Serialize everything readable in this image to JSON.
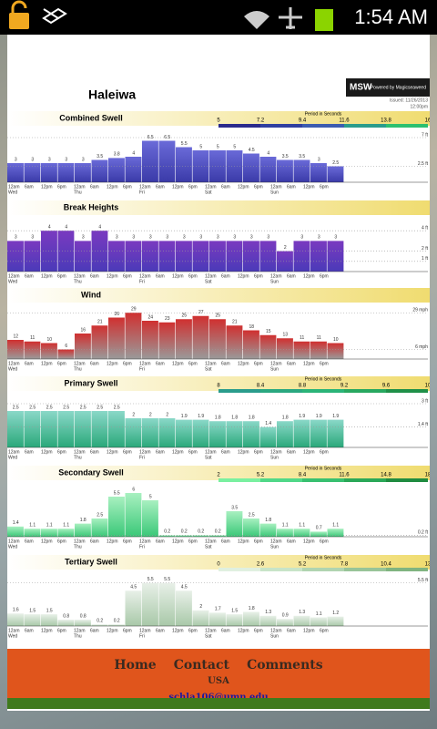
{
  "status_bar": {
    "time": "1:54 AM"
  },
  "header": {
    "spot": "Haleiwa",
    "logo": "MSW",
    "logo_tag": "Powered by Magicseaweed",
    "issued": "Issued: 11/26/2013",
    "issued_time": "12:00pm"
  },
  "time_axis": {
    "hours": [
      "12am",
      "6am",
      "12pm",
      "6pm"
    ],
    "days": [
      "Wed",
      "Thu",
      "Fri",
      "Sat",
      "Sun"
    ]
  },
  "chart_data": [
    {
      "type": "bar",
      "title": "Combined Swell",
      "color": "#3a3aa8",
      "color2": "#6a6ad8",
      "values": [
        3,
        3,
        3,
        3,
        3,
        3.5,
        3.8,
        4,
        6.5,
        6.5,
        5.5,
        5,
        5,
        5,
        4.5,
        4,
        3.5,
        3.5,
        3,
        2.5
      ],
      "ylim": [
        0,
        8
      ],
      "yticks": [
        {
          "value": 7,
          "label": "7 ft"
        },
        {
          "value": 2.5,
          "label": "2.5 ft"
        }
      ],
      "period": {
        "label": "Period in Seconds",
        "ticks": [
          5,
          7.2,
          9.4,
          11.6,
          13.8,
          16
        ],
        "colors": [
          "#2a2a8c",
          "#2f3fa0",
          "#3c5cb0",
          "#2a9c8c",
          "#2cc070"
        ]
      }
    },
    {
      "type": "bar",
      "title": "Break Heights",
      "color": "#4a3ab8",
      "color2": "#7a3ac0",
      "values": [
        3,
        3,
        4,
        4,
        3,
        4,
        3,
        3,
        3,
        3,
        3,
        3,
        3,
        3,
        3,
        3,
        2,
        3,
        3,
        3
      ],
      "ylim": [
        0,
        5
      ],
      "yticks": [
        {
          "value": 4,
          "label": "4 ft"
        },
        {
          "value": 2,
          "label": "2 ft"
        },
        {
          "value": 1,
          "label": "1 ft"
        }
      ]
    },
    {
      "type": "bar",
      "title": "Wind",
      "color": "#9a9a9a",
      "color2": "#d03030",
      "values": [
        12,
        11,
        10,
        6,
        16,
        21,
        26,
        29,
        24,
        23,
        25,
        27,
        25,
        21,
        18,
        15,
        13,
        11,
        11,
        10
      ],
      "ylim": [
        0,
        32
      ],
      "yticks": [
        {
          "value": 29,
          "label": "29 mph"
        },
        {
          "value": 6,
          "label": "6 mph"
        }
      ]
    },
    {
      "type": "bar",
      "title": "Primary Swell",
      "color": "#2aa87a",
      "color2": "#8ad8c8",
      "values": [
        2.5,
        2.5,
        2.5,
        2.5,
        2.5,
        2.5,
        2.5,
        2,
        2,
        2,
        1.9,
        1.9,
        1.8,
        1.8,
        1.8,
        1.4,
        1.8,
        1.9,
        1.9,
        1.9
      ],
      "ylim": [
        0,
        3.5
      ],
      "yticks": [
        {
          "value": 3,
          "label": "3 ft"
        },
        {
          "value": 1.4,
          "label": "1.4 ft"
        }
      ],
      "period": {
        "label": "Period in Seconds",
        "ticks": [
          8,
          8.4,
          8.8,
          9.2,
          9.6,
          10
        ],
        "colors": [
          "#2a9c8c",
          "#2aa880",
          "#2ab478",
          "#28a860",
          "#1f9048"
        ]
      }
    },
    {
      "type": "bar",
      "title": "Secondary Swell",
      "color": "#3ac878",
      "color2": "#a8f0c0",
      "values": [
        1.4,
        1.1,
        1.1,
        1.1,
        1.8,
        2.5,
        5.5,
        6,
        5,
        0.2,
        0.2,
        0.2,
        0.2,
        3.5,
        2.5,
        1.8,
        1.1,
        1.1,
        0.7,
        1.1
      ],
      "ylim": [
        0,
        7
      ],
      "yticks": [
        {
          "value": 0.2,
          "label": "0.2 ft"
        }
      ],
      "period": {
        "label": "Period in Seconds",
        "ticks": [
          2,
          5.2,
          8.4,
          11.6,
          14.8,
          18
        ],
        "colors": [
          "#7af0a0",
          "#50d888",
          "#38c070",
          "#2aa858",
          "#1f8c40"
        ]
      }
    },
    {
      "type": "bar",
      "title": "Tertiary Swell",
      "color": "#a8c8a8",
      "color2": "#e8f0e8",
      "values": [
        1.6,
        1.5,
        1.5,
        0.8,
        0.8,
        0.2,
        0.2,
        4.5,
        5.5,
        5.5,
        4.5,
        2,
        1.7,
        1.5,
        1.8,
        1.3,
        0.9,
        1.3,
        1.1,
        1.2
      ],
      "ylim": [
        0,
        6.5
      ],
      "yticks": [
        {
          "value": 5.5,
          "label": "5.5 ft"
        }
      ],
      "period": {
        "label": "Period in Seconds",
        "ticks": [
          0,
          2.6,
          5.2,
          7.8,
          10.4,
          13
        ],
        "colors": [
          "#e0f0e0",
          "#c8e4c8",
          "#b0d4b0",
          "#98c498",
          "#80b480"
        ]
      }
    }
  ],
  "footer": {
    "links": [
      "Home",
      "Contact",
      "Comments"
    ],
    "country": "USA",
    "email": "schla106@umn.edu"
  }
}
